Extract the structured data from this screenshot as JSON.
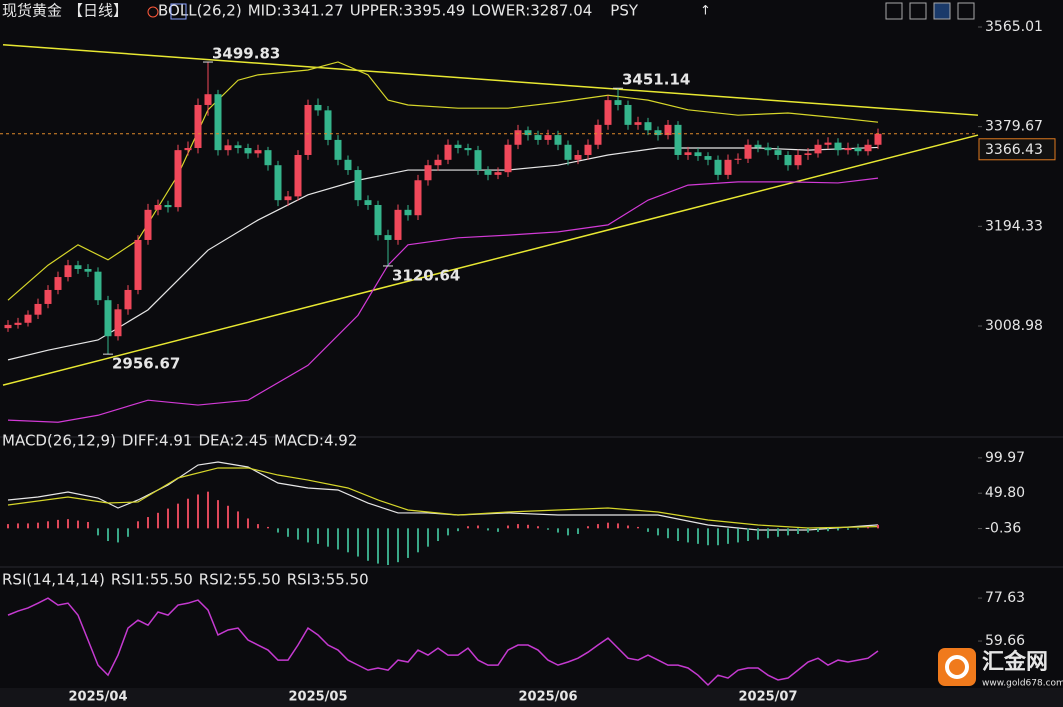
{
  "chart_data": [
    {
      "type": "candlestick",
      "title": "现货黄金",
      "period": "【日线】",
      "indicator": "BOLL(26,2)",
      "extra": "PSY",
      "ylim": [
        2815.6,
        3587.3
      ],
      "yticks": [
        3565.01,
        3379.67,
        3194.33,
        3008.98
      ],
      "last_price": 3366.43,
      "up_color": "#f0485a",
      "down_color": "#35b58c",
      "ohlc": [
        [
          3005,
          3020,
          2998,
          3011
        ],
        [
          3011,
          3024,
          3004,
          3015
        ],
        [
          3015,
          3038,
          3008,
          3030
        ],
        [
          3030,
          3060,
          3022,
          3050
        ],
        [
          3050,
          3085,
          3042,
          3076
        ],
        [
          3076,
          3110,
          3068,
          3100
        ],
        [
          3100,
          3132,
          3092,
          3122
        ],
        [
          3122,
          3130,
          3106,
          3115
        ],
        [
          3115,
          3124,
          3100,
          3110
        ],
        [
          3110,
          3118,
          3048,
          3057
        ],
        [
          3057,
          3065,
          2956.67,
          2990
        ],
        [
          2990,
          3050,
          2982,
          3040
        ],
        [
          3040,
          3085,
          3030,
          3076
        ],
        [
          3076,
          3178,
          3068,
          3169
        ],
        [
          3169,
          3236,
          3160,
          3225
        ],
        [
          3225,
          3244,
          3215,
          3234
        ],
        [
          3234,
          3242,
          3220,
          3230
        ],
        [
          3230,
          3346,
          3222,
          3336
        ],
        [
          3336,
          3352,
          3326,
          3340
        ],
        [
          3340,
          3432,
          3330,
          3420
        ],
        [
          3420,
          3499.83,
          3400,
          3440
        ],
        [
          3440,
          3448,
          3326,
          3336
        ],
        [
          3336,
          3356,
          3326,
          3345
        ],
        [
          3345,
          3352,
          3330,
          3340
        ],
        [
          3340,
          3348,
          3320,
          3330
        ],
        [
          3330,
          3346,
          3322,
          3336
        ],
        [
          3336,
          3342,
          3298,
          3308
        ],
        [
          3308,
          3316,
          3232,
          3243
        ],
        [
          3243,
          3260,
          3232,
          3250
        ],
        [
          3250,
          3336,
          3242,
          3327
        ],
        [
          3327,
          3430,
          3318,
          3420
        ],
        [
          3420,
          3432,
          3400,
          3410
        ],
        [
          3410,
          3418,
          3345,
          3355
        ],
        [
          3355,
          3364,
          3308,
          3318
        ],
        [
          3318,
          3326,
          3290,
          3299
        ],
        [
          3299,
          3306,
          3232,
          3243
        ],
        [
          3243,
          3252,
          3225,
          3234
        ],
        [
          3234,
          3242,
          3168,
          3178
        ],
        [
          3178,
          3188,
          3120.64,
          3169
        ],
        [
          3169,
          3235,
          3160,
          3225
        ],
        [
          3225,
          3234,
          3205,
          3215
        ],
        [
          3215,
          3290,
          3206,
          3280
        ],
        [
          3280,
          3318,
          3270,
          3308
        ],
        [
          3308,
          3328,
          3298,
          3318
        ],
        [
          3318,
          3356,
          3310,
          3346
        ],
        [
          3346,
          3354,
          3330,
          3340
        ],
        [
          3340,
          3348,
          3326,
          3336
        ],
        [
          3336,
          3344,
          3290,
          3299
        ],
        [
          3299,
          3306,
          3280,
          3290
        ],
        [
          3290,
          3304,
          3282,
          3295
        ],
        [
          3295,
          3356,
          3286,
          3346
        ],
        [
          3346,
          3383,
          3338,
          3373
        ],
        [
          3373,
          3380,
          3354,
          3364
        ],
        [
          3364,
          3372,
          3346,
          3355
        ],
        [
          3355,
          3374,
          3346,
          3364
        ],
        [
          3364,
          3372,
          3336,
          3346
        ],
        [
          3346,
          3354,
          3308,
          3318
        ],
        [
          3318,
          3336,
          3310,
          3327
        ],
        [
          3327,
          3356,
          3318,
          3346
        ],
        [
          3346,
          3393,
          3338,
          3383
        ],
        [
          3383,
          3438,
          3374,
          3429
        ],
        [
          3429,
          3451.14,
          3410,
          3420
        ],
        [
          3420,
          3428,
          3374,
          3383
        ],
        [
          3383,
          3398,
          3374,
          3388
        ],
        [
          3388,
          3396,
          3364,
          3373
        ],
        [
          3373,
          3380,
          3354,
          3364
        ],
        [
          3364,
          3392,
          3356,
          3383
        ],
        [
          3383,
          3390,
          3318,
          3327
        ],
        [
          3327,
          3342,
          3318,
          3332
        ],
        [
          3332,
          3340,
          3316,
          3325
        ],
        [
          3325,
          3332,
          3308,
          3318
        ],
        [
          3318,
          3326,
          3280,
          3290
        ],
        [
          3290,
          3328,
          3282,
          3318
        ],
        [
          3318,
          3330,
          3310,
          3320
        ],
        [
          3320,
          3356,
          3312,
          3346
        ],
        [
          3346,
          3354,
          3332,
          3341
        ],
        [
          3341,
          3350,
          3326,
          3336
        ],
        [
          3336,
          3344,
          3318,
          3327
        ],
        [
          3327,
          3334,
          3298,
          3308
        ],
        [
          3308,
          3337,
          3300,
          3327
        ],
        [
          3327,
          3340,
          3318,
          3330
        ],
        [
          3330,
          3356,
          3322,
          3346
        ],
        [
          3346,
          3360,
          3338,
          3350
        ],
        [
          3350,
          3358,
          3326,
          3336
        ],
        [
          3336,
          3350,
          3328,
          3340
        ],
        [
          3340,
          3348,
          3326,
          3334
        ],
        [
          3334,
          3356,
          3326,
          3346
        ],
        [
          3346,
          3376,
          3338,
          3366.43
        ]
      ],
      "series": [
        {
          "name": "MID:",
          "value": 3341.27,
          "color": "#e6e6e6",
          "x": [
            0,
            4,
            9,
            14,
            20,
            25,
            30,
            35,
            40,
            45,
            50,
            55,
            60,
            65,
            70,
            75,
            80,
            87
          ],
          "values": [
            2946,
            2964,
            2983,
            3039,
            3150,
            3206,
            3253,
            3280,
            3299,
            3299,
            3299,
            3308,
            3327,
            3340,
            3340,
            3340,
            3336,
            3341
          ]
        },
        {
          "name": "UPPER:",
          "value": 3395.49,
          "color": "#d6d62a",
          "x": [
            0,
            4,
            7,
            10,
            13,
            17,
            20,
            23,
            25,
            30,
            33,
            36,
            38,
            40,
            45,
            50,
            55,
            60,
            64,
            68,
            73,
            78,
            83,
            87
          ],
          "values": [
            3057,
            3122,
            3160,
            3132,
            3169,
            3290,
            3411,
            3466,
            3476,
            3485,
            3500,
            3476,
            3429,
            3420,
            3414,
            3414,
            3425,
            3438,
            3429,
            3411,
            3401,
            3405,
            3396,
            3388
          ]
        },
        {
          "name": "LOWER:",
          "value": 3287.04,
          "color": "#d23ad6",
          "x": [
            0,
            5,
            9,
            14,
            19,
            24,
            30,
            35,
            38,
            40,
            45,
            50,
            55,
            60,
            64,
            68,
            73,
            78,
            83,
            87
          ],
          "values": [
            2834,
            2830,
            2843,
            2871,
            2862,
            2871,
            2936,
            3029,
            3122,
            3160,
            3173,
            3178,
            3184,
            3197,
            3243,
            3271,
            3277,
            3277,
            3275,
            3284
          ]
        }
      ],
      "trendlines": [
        {
          "color": "#e8e832",
          "x": [
            -0.5,
            97
          ],
          "values": [
            3532,
            3401
          ]
        },
        {
          "color": "#e8e832",
          "x": [
            -0.5,
            97
          ],
          "values": [
            2899,
            3364
          ]
        }
      ]
    },
    {
      "type": "macd",
      "title": "MACD(26,12,9)",
      "ylim": [
        -52,
        104
      ],
      "yticks": [
        99.97,
        {
          "value": 49.8,
          "label": "49.80"
        },
        -0.36
      ],
      "series": [
        {
          "name": "DIFF:",
          "value": 4.91,
          "color": "#e6e6e6",
          "x": [
            0,
            3,
            6,
            9,
            11,
            13,
            16,
            19,
            21,
            24,
            27,
            30,
            33,
            36,
            39,
            42,
            45,
            50,
            55,
            60,
            65,
            70,
            75,
            80,
            87
          ],
          "values": [
            40.2,
            44.4,
            51.5,
            43,
            28.8,
            40.2,
            61.5,
            89.8,
            94.1,
            87,
            64.3,
            57.2,
            54.4,
            35.9,
            21.8,
            21.8,
            18.9,
            21.8,
            18.9,
            18.9,
            18.9,
            4.7,
            -2.4,
            -2.4,
            4.91
          ]
        },
        {
          "name": "DEA:",
          "value": 2.45,
          "color": "#d6d62a",
          "x": [
            0,
            6,
            10,
            13,
            17,
            21,
            24,
            27,
            30,
            34,
            37,
            40,
            45,
            50,
            55,
            60,
            65,
            70,
            75,
            80,
            87
          ],
          "values": [
            33.1,
            44.4,
            35.9,
            37.4,
            71.4,
            85.6,
            85.6,
            75.6,
            68.5,
            57.2,
            40.2,
            26,
            18.9,
            23.2,
            26,
            28.8,
            23.2,
            11.8,
            4.7,
            0.5,
            2.45
          ]
        },
        {
          "name": "MACD:",
          "value": 4.92,
          "color": "#d23ad6",
          "type": "bar",
          "up_color": "#e0485a",
          "down_color": "#3aa888",
          "values": [
            6,
            7,
            7,
            8,
            10,
            12,
            13,
            11,
            9,
            -10,
            -18,
            -20,
            -12,
            10,
            16,
            22,
            28,
            35,
            42,
            48,
            52,
            40,
            32,
            24,
            14,
            6,
            2,
            -6,
            -12,
            -16,
            -20,
            -22,
            -26,
            -30,
            -34,
            -40,
            -46,
            -50,
            -52,
            -48,
            -42,
            -34,
            -26,
            -18,
            -10,
            -4,
            3,
            4,
            -3,
            -5,
            4,
            6,
            5,
            3,
            -2,
            -6,
            -10,
            -8,
            3,
            6,
            8,
            7,
            4,
            2,
            -5,
            -10,
            -14,
            -18,
            -20,
            -22,
            -24,
            -24,
            -22,
            -20,
            -18,
            -16,
            -14,
            -12,
            -10,
            -8,
            -6,
            -5,
            -4,
            -3,
            -2,
            -1,
            2,
            4.92
          ]
        }
      ]
    },
    {
      "type": "line",
      "title": "RSI(14,14,14)",
      "ylim": [
        39.2,
        81
      ],
      "yticks": [
        77.63,
        59.66
      ],
      "series": [
        {
          "name": "RSI1:",
          "value": {
            "value": 55.5,
            "label": "55.50"
          },
          "color": "#e6e6e6"
        },
        {
          "name": "RSI2:",
          "value": {
            "value": 55.5,
            "label": "55.50"
          },
          "color": "#d6d62a"
        },
        {
          "name": "RSI3:",
          "value": {
            "value": 55.5,
            "label": "55.50"
          },
          "color": "#c53ad0",
          "values": [
            70.5,
            72.2,
            73.5,
            75.5,
            77.6,
            74.7,
            75.5,
            70.5,
            60.1,
            49.6,
            45.4,
            53.8,
            65.1,
            68.4,
            66.3,
            71.8,
            70.5,
            74.7,
            75.5,
            76.8,
            72.6,
            62.2,
            64.3,
            65.1,
            60.1,
            58,
            55.9,
            51.7,
            51.7,
            58,
            65.1,
            62.2,
            58,
            55.9,
            51.7,
            49.6,
            47.5,
            48.4,
            47.5,
            51.7,
            50.9,
            55.9,
            53.8,
            56.7,
            53.8,
            53.8,
            56.7,
            51.7,
            49.6,
            49.6,
            55.9,
            58,
            58,
            55.9,
            51.7,
            49.6,
            50.9,
            52.5,
            55,
            58,
            60.9,
            56.7,
            52.5,
            51.7,
            53.8,
            51.7,
            49.6,
            49.6,
            48.4,
            45.4,
            41.3,
            45.4,
            44.2,
            47.5,
            48.4,
            48.4,
            45.4,
            43.4,
            44.2,
            47.5,
            50.9,
            52.5,
            49.6,
            51.7,
            50.9,
            51.7,
            52.5,
            55.5
          ]
        }
      ]
    }
  ],
  "x_axis": {
    "categories": [
      null,
      null,
      null,
      null,
      null,
      null,
      null,
      null,
      null,
      "2025/04",
      null,
      null,
      null,
      null,
      null,
      null,
      null,
      null,
      null,
      null,
      null,
      null,
      null,
      null,
      null,
      null,
      null,
      null,
      null,
      null,
      null,
      "2025/05",
      null,
      null,
      null,
      null,
      null,
      null,
      null,
      null,
      null,
      null,
      null,
      null,
      null,
      null,
      null,
      null,
      null,
      null,
      null,
      null,
      null,
      null,
      "2025/06",
      null,
      null,
      null,
      null,
      null,
      null,
      null,
      null,
      null,
      null,
      null,
      null,
      null,
      null,
      null,
      null,
      null,
      null,
      null,
      null,
      null,
      "2025/07",
      null,
      null,
      null,
      null,
      null,
      null,
      null,
      null,
      null,
      null,
      null
    ]
  },
  "logo": {
    "name": "汇金网",
    "url": "www.gold678.com"
  }
}
